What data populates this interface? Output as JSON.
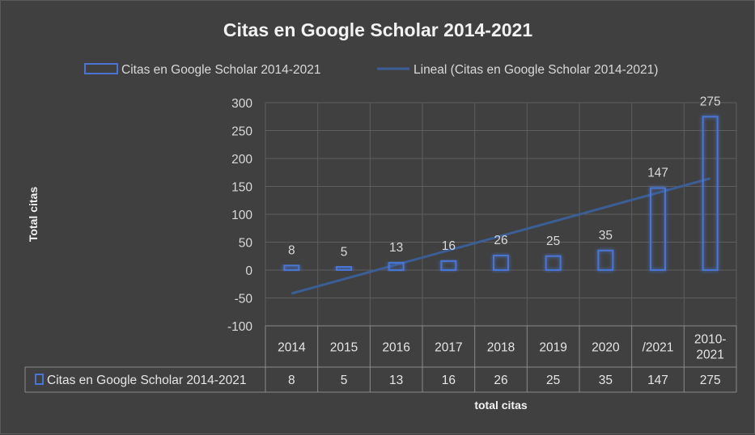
{
  "chart_data": {
    "type": "bar",
    "title": "Citas en Google Scholar 2014-2021",
    "xlabel": "total citas",
    "ylabel": "Total citas",
    "categories": [
      "2014",
      "2015",
      "2016",
      "2017",
      "2018",
      "2019",
      "2020",
      "/2021",
      "2010-\n2021"
    ],
    "series": [
      {
        "name": "Citas en Google Scholar 2014-2021",
        "values": [
          8,
          5,
          13,
          16,
          26,
          25,
          35,
          147,
          275
        ],
        "color": "#4a74d4"
      }
    ],
    "trendline": {
      "name": "Lineal (Citas en Google Scholar 2014-2021)",
      "type": "linear",
      "color": "#3b5e96"
    },
    "ylim": [
      -100,
      300
    ],
    "yticks": [
      -100,
      -50,
      0,
      50,
      100,
      150,
      200,
      250,
      300
    ],
    "ytick_labels": [
      "-100",
      "-50",
      "0",
      "50",
      "100",
      "150",
      "200",
      "250",
      "300"
    ],
    "grid": true,
    "legend": "top",
    "data_table": true
  }
}
